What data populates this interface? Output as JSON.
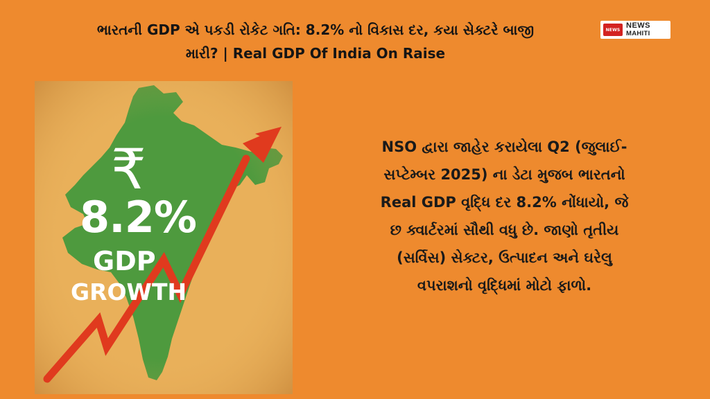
{
  "headline": {
    "line1": "ભારતની GDP એ પકડી રોકેટ ગતિ: 8.2% નો વિકાસ દર, કયા સેક્ટરે બાજી",
    "line2": "મારી? | Real GDP Of India On Raise"
  },
  "logo": {
    "mark": "NEWS",
    "line1": "NEWS",
    "line2": "MAHITI",
    "accent_color": "#D32321"
  },
  "infographic": {
    "currency_symbol": "₹",
    "growth_rate": "8.2%",
    "label_line1": "GDP",
    "label_line2": "GROWTH",
    "map_color": "#4E9A3E",
    "arrow_color": "#E03A1E",
    "icon": "up-trend-arrow-icon"
  },
  "description": {
    "lines": [
      "NSO દ્વારા જાહેર કરાયેલા Q2 (જુલાઈ-",
      "સપ્ટેમ્બર 2025) ના ડેટા મુજબ ભારતનો",
      "Real GDP વૃદ્ધિ દર 8.2% નોંધાયો, જે",
      "છ ક્વાર્ટરમાં સૌથી વધુ છે. જાણો તૃતીય",
      "(સર્વિસ) સેક્ટર, ઉત્પાદન અને ઘરેલુ",
      "વપરાશનો વૃદ્ધિમાં મોટો ફાળો."
    ]
  },
  "colors": {
    "background": "#EE8A2E",
    "panel": "#E9B05A"
  }
}
